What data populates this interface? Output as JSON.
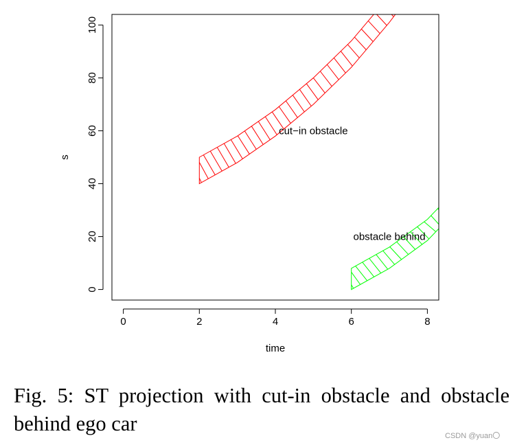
{
  "chart_data": {
    "type": "area",
    "xlabel": "time",
    "ylabel": "s",
    "xlim": [
      -0.3,
      8.3
    ],
    "ylim": [
      -4,
      104
    ],
    "xticks": [
      0,
      2,
      4,
      6,
      8
    ],
    "yticks": [
      0,
      20,
      40,
      60,
      80,
      100
    ],
    "grid": false,
    "legend": "none",
    "fill": "diagonal hatching",
    "series": [
      {
        "color": "#ff0000",
        "x": [
          2,
          3,
          4,
          5,
          6,
          7,
          8
        ],
        "lower": [
          40,
          48,
          58,
          70,
          84,
          101,
          120
        ],
        "upper": [
          50,
          58,
          68,
          80,
          94,
          111,
          130
        ]
      },
      {
        "color": "#00ff00",
        "x": [
          6,
          7,
          8,
          8.3
        ],
        "lower": [
          0,
          8,
          18.5,
          23
        ],
        "upper": [
          8,
          16,
          26.5,
          31
        ]
      }
    ],
    "annotations": [
      {
        "text": "cut−in obstacle",
        "x": 5,
        "y": 60
      },
      {
        "text": "obstacle behind",
        "x": 7,
        "y": 20
      }
    ]
  },
  "caption": "Fig. 5: ST projection with cut-in obstacle and obstacle behind ego car",
  "watermark": "CSDN @yuan〇"
}
